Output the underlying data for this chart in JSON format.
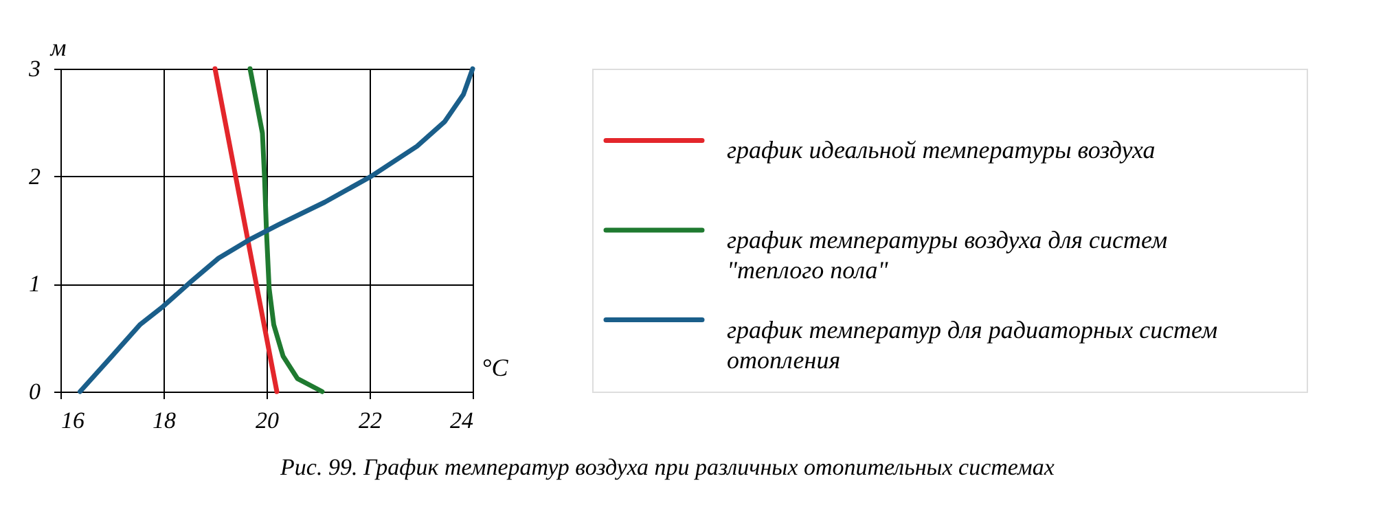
{
  "chart_data": {
    "type": "line",
    "xlabel": "°C",
    "ylabel": "м",
    "xlim": [
      16,
      24
    ],
    "xticks": [
      16,
      18,
      20,
      22,
      24
    ],
    "ylim": [
      0,
      3
    ],
    "yticks": [
      0,
      1,
      2,
      3
    ],
    "grid": true,
    "legend": "right",
    "marker": "none",
    "line_style": "solid",
    "annotations": [
      "Рис. 99. График температур воздуха при различных отопительных системах"
    ],
    "series": [
      {
        "name": "график идеальной температуры воздуха",
        "color": "#e3262b",
        "x": [
          19.0,
          20.2
        ],
        "values": [
          3,
          0
        ]
      },
      {
        "name": "график температуры воздуха для систем \"теплого пола\"",
        "color": "#1f7a30",
        "x": [
          19.68,
          19.92,
          19.96,
          20.0,
          20.05,
          20.14,
          20.32,
          20.6,
          21.08
        ],
        "values": [
          3,
          2.4,
          2,
          1.47,
          0.96,
          0.62,
          0.33,
          0.12,
          0
        ]
      },
      {
        "name": "график температур для радиаторных систем отопления",
        "color": "#1a5e8a",
        "x": [
          16.38,
          17.0,
          17.54,
          17.99,
          18.53,
          19.07,
          19.7,
          20.23,
          21.13,
          22.03,
          22.92,
          23.46,
          23.82,
          24.0
        ],
        "values": [
          0,
          0.33,
          0.62,
          0.79,
          1.02,
          1.24,
          1.42,
          1.55,
          1.76,
          2.0,
          2.28,
          2.51,
          2.76,
          3
        ]
      }
    ]
  }
}
